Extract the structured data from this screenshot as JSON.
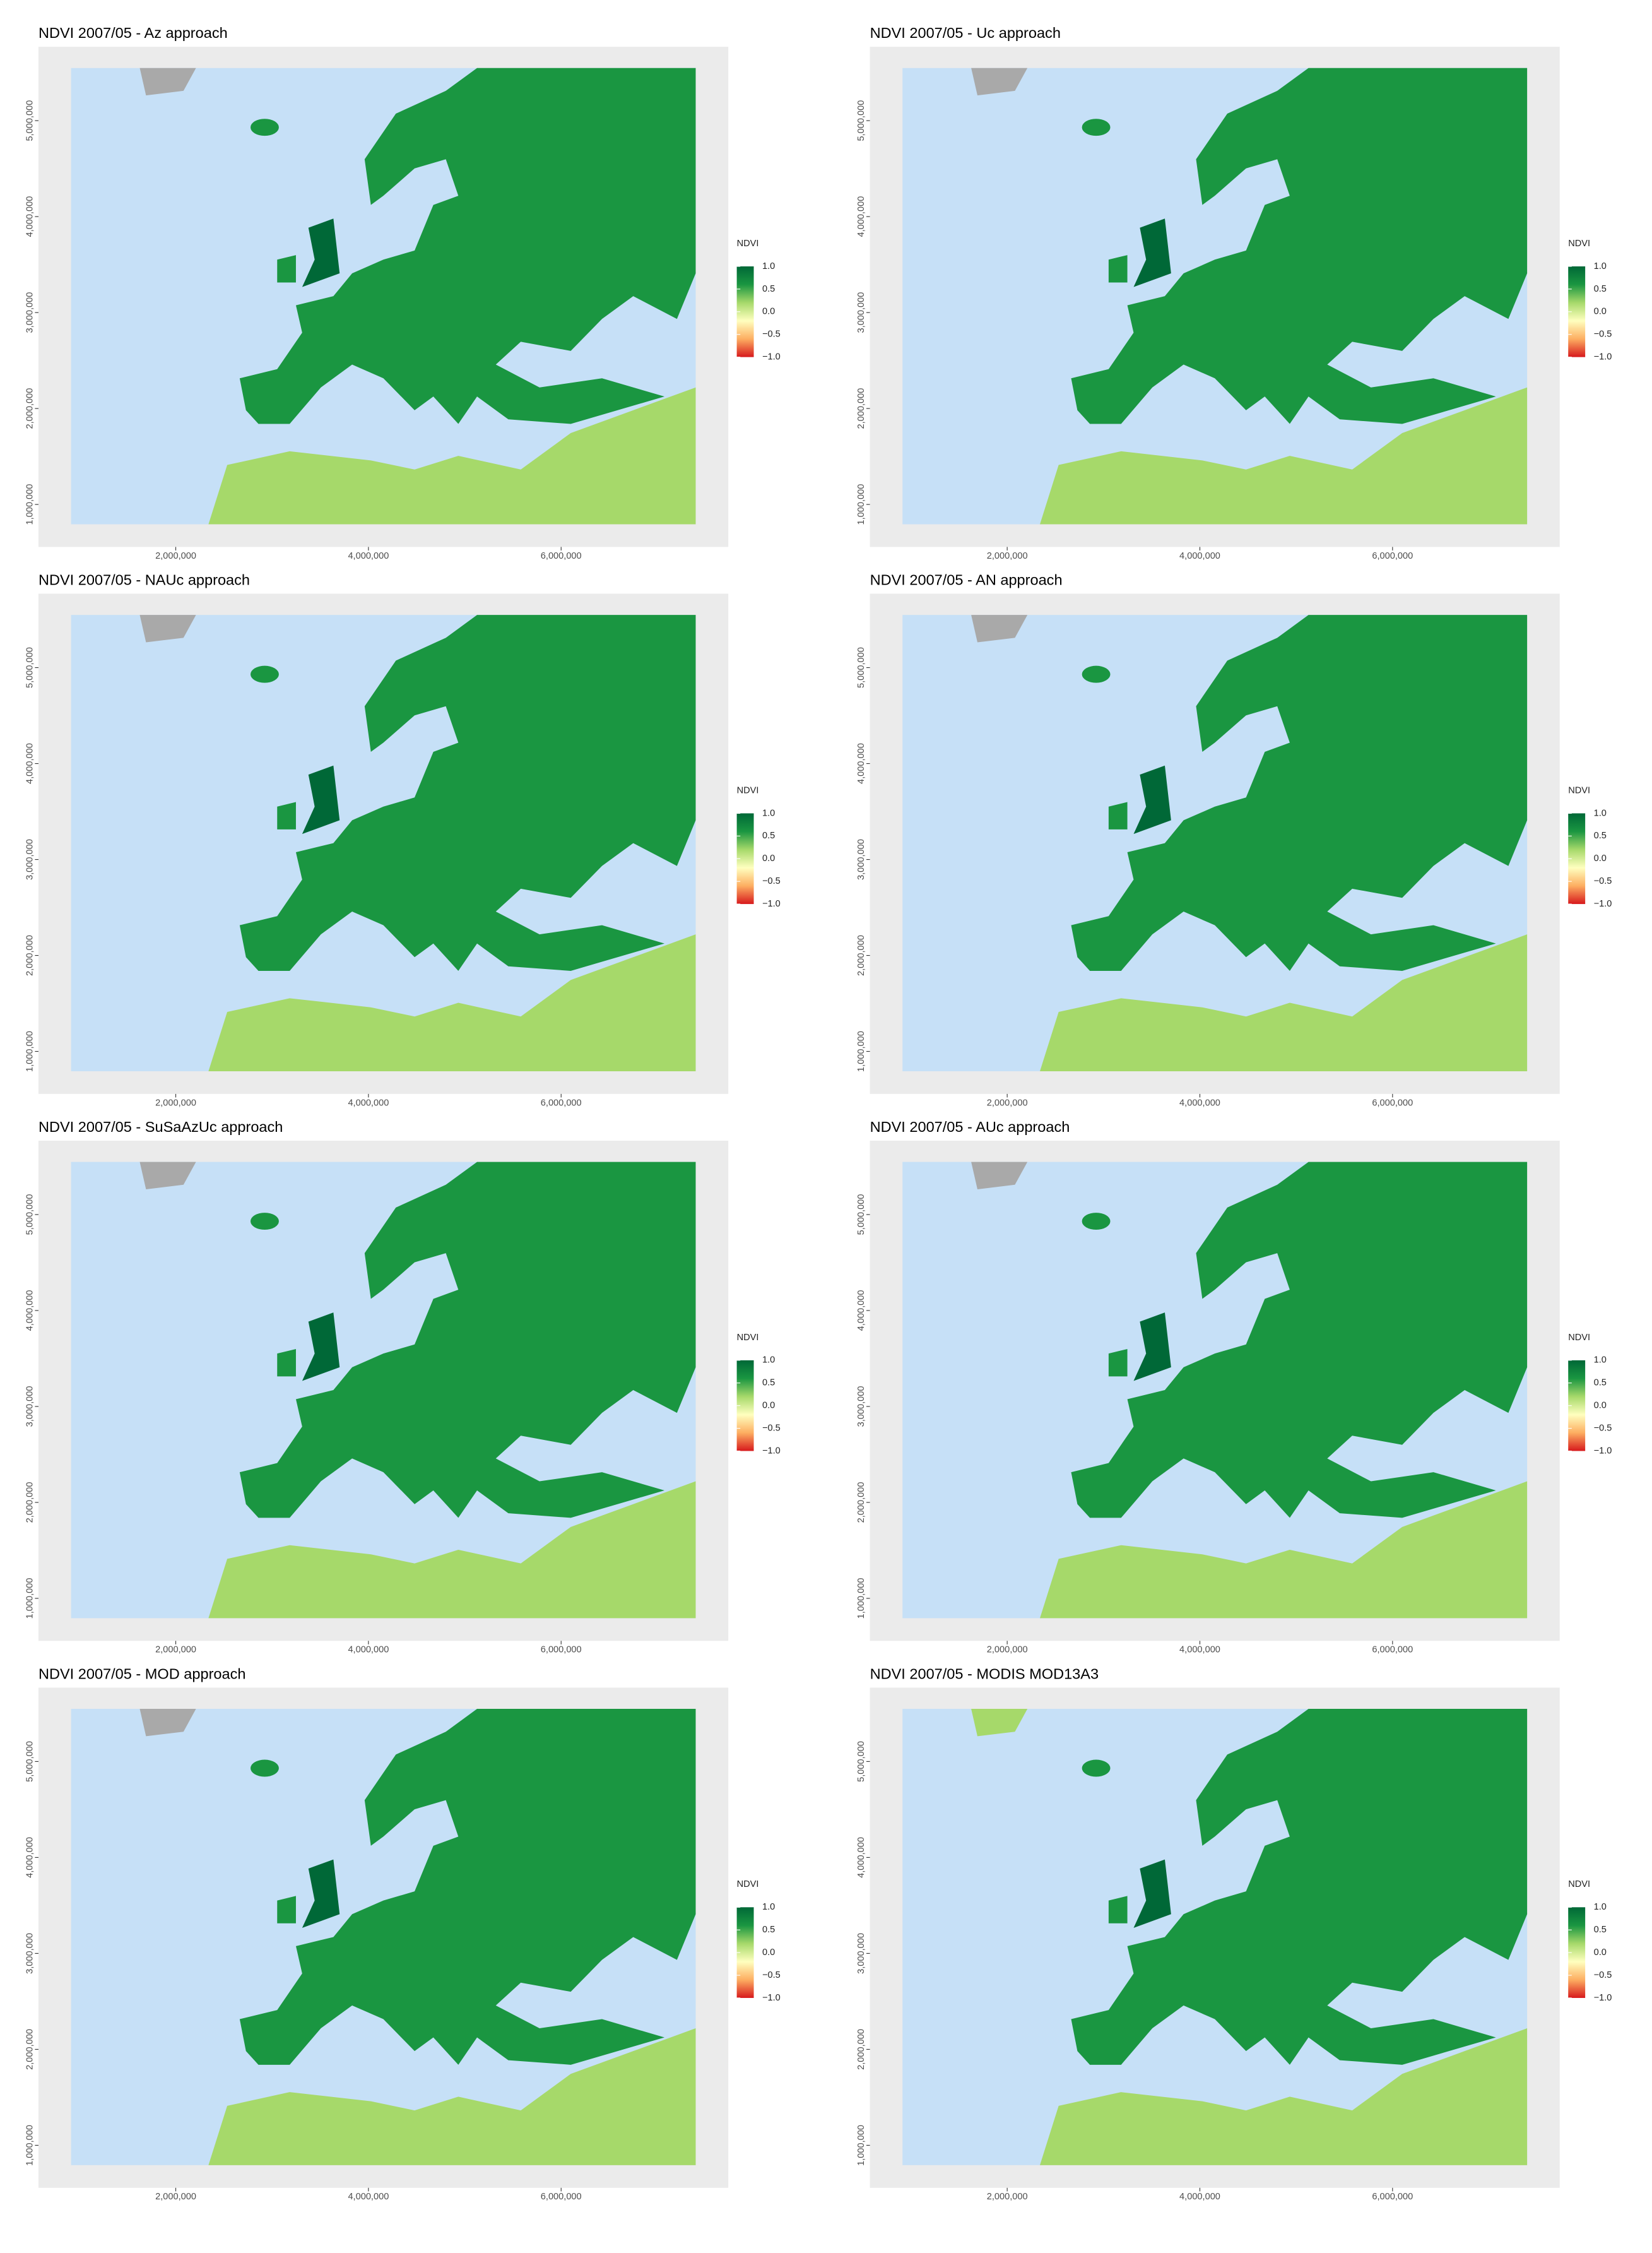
{
  "chart_data": [
    {
      "type": "raster-map",
      "title": "NDVI 2007/05 - Az approach",
      "legend_title": "NDVI",
      "colormap": [
        "#d7191c",
        "#fdae61",
        "#ffffbf",
        "#a6d96a",
        "#1a9641",
        "#006837"
      ],
      "clim": [
        -1,
        1
      ],
      "colorbar_ticks": [
        {
          "value": 1,
          "label": "1.0"
        },
        {
          "value": 0.5,
          "label": "0.5"
        },
        {
          "value": 0,
          "label": "0.0"
        },
        {
          "value": -0.5,
          "label": "−0.5"
        },
        {
          "value": -1,
          "label": "−1.0"
        }
      ],
      "xlim": [
        575000,
        7735000
      ],
      "ylim": [
        557000,
        5770000
      ],
      "xticks": [
        {
          "value": 2000000,
          "label": "2,000,000"
        },
        {
          "value": 4000000,
          "label": "4,000,000"
        },
        {
          "value": 6000000,
          "label": "6,000,000"
        }
      ],
      "yticks": [
        {
          "value": 1000000,
          "label": "1,000,000"
        },
        {
          "value": 2000000,
          "label": "2,000,000"
        },
        {
          "value": 3000000,
          "label": "3,000,000"
        },
        {
          "value": 4000000,
          "label": "4,000,000"
        },
        {
          "value": 5000000,
          "label": "5,000,000"
        }
      ]
    },
    {
      "type": "raster-map",
      "title": "NDVI 2007/05 - Uc approach",
      "legend_title": "NDVI",
      "colormap": [
        "#d7191c",
        "#fdae61",
        "#ffffbf",
        "#a6d96a",
        "#1a9641",
        "#006837"
      ],
      "clim": [
        -1,
        1
      ],
      "colorbar_ticks": [
        {
          "value": 1,
          "label": "1.0"
        },
        {
          "value": 0.5,
          "label": "0.5"
        },
        {
          "value": 0,
          "label": "0.0"
        },
        {
          "value": -0.5,
          "label": "−0.5"
        },
        {
          "value": -1,
          "label": "−1.0"
        }
      ],
      "xlim": [
        575000,
        7735000
      ],
      "ylim": [
        557000,
        5770000
      ],
      "xticks": [
        {
          "value": 2000000,
          "label": "2,000,000"
        },
        {
          "value": 4000000,
          "label": "4,000,000"
        },
        {
          "value": 6000000,
          "label": "6,000,000"
        }
      ],
      "yticks": [
        {
          "value": 1000000,
          "label": "1,000,000"
        },
        {
          "value": 2000000,
          "label": "2,000,000"
        },
        {
          "value": 3000000,
          "label": "3,000,000"
        },
        {
          "value": 4000000,
          "label": "4,000,000"
        },
        {
          "value": 5000000,
          "label": "5,000,000"
        }
      ]
    },
    {
      "type": "raster-map",
      "title": "NDVI 2007/05 - NAUc approach",
      "legend_title": "NDVI",
      "colormap": [
        "#d7191c",
        "#fdae61",
        "#ffffbf",
        "#a6d96a",
        "#1a9641",
        "#006837"
      ],
      "clim": [
        -1,
        1
      ],
      "colorbar_ticks": [
        {
          "value": 1,
          "label": "1.0"
        },
        {
          "value": 0.5,
          "label": "0.5"
        },
        {
          "value": 0,
          "label": "0.0"
        },
        {
          "value": -0.5,
          "label": "−0.5"
        },
        {
          "value": -1,
          "label": "−1.0"
        }
      ],
      "xlim": [
        575000,
        7735000
      ],
      "ylim": [
        557000,
        5770000
      ],
      "xticks": [
        {
          "value": 2000000,
          "label": "2,000,000"
        },
        {
          "value": 4000000,
          "label": "4,000,000"
        },
        {
          "value": 6000000,
          "label": "6,000,000"
        }
      ],
      "yticks": [
        {
          "value": 1000000,
          "label": "1,000,000"
        },
        {
          "value": 2000000,
          "label": "2,000,000"
        },
        {
          "value": 3000000,
          "label": "3,000,000"
        },
        {
          "value": 4000000,
          "label": "4,000,000"
        },
        {
          "value": 5000000,
          "label": "5,000,000"
        }
      ]
    },
    {
      "type": "raster-map",
      "title": "NDVI 2007/05 - AN approach",
      "legend_title": "NDVI",
      "colormap": [
        "#d7191c",
        "#fdae61",
        "#ffffbf",
        "#a6d96a",
        "#1a9641",
        "#006837"
      ],
      "clim": [
        -1,
        1
      ],
      "colorbar_ticks": [
        {
          "value": 1,
          "label": "1.0"
        },
        {
          "value": 0.5,
          "label": "0.5"
        },
        {
          "value": 0,
          "label": "0.0"
        },
        {
          "value": -0.5,
          "label": "−0.5"
        },
        {
          "value": -1,
          "label": "−1.0"
        }
      ],
      "xlim": [
        575000,
        7735000
      ],
      "ylim": [
        557000,
        5770000
      ],
      "xticks": [
        {
          "value": 2000000,
          "label": "2,000,000"
        },
        {
          "value": 4000000,
          "label": "4,000,000"
        },
        {
          "value": 6000000,
          "label": "6,000,000"
        }
      ],
      "yticks": [
        {
          "value": 1000000,
          "label": "1,000,000"
        },
        {
          "value": 2000000,
          "label": "2,000,000"
        },
        {
          "value": 3000000,
          "label": "3,000,000"
        },
        {
          "value": 4000000,
          "label": "4,000,000"
        },
        {
          "value": 5000000,
          "label": "5,000,000"
        }
      ]
    },
    {
      "type": "raster-map",
      "title": "NDVI 2007/05 - SuSaAzUc approach",
      "legend_title": "NDVI",
      "colormap": [
        "#d7191c",
        "#fdae61",
        "#ffffbf",
        "#a6d96a",
        "#1a9641",
        "#006837"
      ],
      "clim": [
        -1,
        1
      ],
      "colorbar_ticks": [
        {
          "value": 1,
          "label": "1.0"
        },
        {
          "value": 0.5,
          "label": "0.5"
        },
        {
          "value": 0,
          "label": "0.0"
        },
        {
          "value": -0.5,
          "label": "−0.5"
        },
        {
          "value": -1,
          "label": "−1.0"
        }
      ],
      "xlim": [
        575000,
        7735000
      ],
      "ylim": [
        557000,
        5770000
      ],
      "xticks": [
        {
          "value": 2000000,
          "label": "2,000,000"
        },
        {
          "value": 4000000,
          "label": "4,000,000"
        },
        {
          "value": 6000000,
          "label": "6,000,000"
        }
      ],
      "yticks": [
        {
          "value": 1000000,
          "label": "1,000,000"
        },
        {
          "value": 2000000,
          "label": "2,000,000"
        },
        {
          "value": 3000000,
          "label": "3,000,000"
        },
        {
          "value": 4000000,
          "label": "4,000,000"
        },
        {
          "value": 5000000,
          "label": "5,000,000"
        }
      ]
    },
    {
      "type": "raster-map",
      "title": "NDVI 2007/05 - AUc approach",
      "legend_title": "NDVI",
      "colormap": [
        "#d7191c",
        "#fdae61",
        "#ffffbf",
        "#a6d96a",
        "#1a9641",
        "#006837"
      ],
      "clim": [
        -1,
        1
      ],
      "colorbar_ticks": [
        {
          "value": 1,
          "label": "1.0"
        },
        {
          "value": 0.5,
          "label": "0.5"
        },
        {
          "value": 0,
          "label": "0.0"
        },
        {
          "value": -0.5,
          "label": "−0.5"
        },
        {
          "value": -1,
          "label": "−1.0"
        }
      ],
      "xlim": [
        575000,
        7735000
      ],
      "ylim": [
        557000,
        5770000
      ],
      "xticks": [
        {
          "value": 2000000,
          "label": "2,000,000"
        },
        {
          "value": 4000000,
          "label": "4,000,000"
        },
        {
          "value": 6000000,
          "label": "6,000,000"
        }
      ],
      "yticks": [
        {
          "value": 1000000,
          "label": "1,000,000"
        },
        {
          "value": 2000000,
          "label": "2,000,000"
        },
        {
          "value": 3000000,
          "label": "3,000,000"
        },
        {
          "value": 4000000,
          "label": "4,000,000"
        },
        {
          "value": 5000000,
          "label": "5,000,000"
        }
      ]
    },
    {
      "type": "raster-map",
      "title": "NDVI 2007/05 - MOD approach",
      "legend_title": "NDVI",
      "colormap": [
        "#d7191c",
        "#fdae61",
        "#ffffbf",
        "#a6d96a",
        "#1a9641",
        "#006837"
      ],
      "clim": [
        -1,
        1
      ],
      "colorbar_ticks": [
        {
          "value": 1,
          "label": "1.0"
        },
        {
          "value": 0.5,
          "label": "0.5"
        },
        {
          "value": 0,
          "label": "0.0"
        },
        {
          "value": -0.5,
          "label": "−0.5"
        },
        {
          "value": -1,
          "label": "−1.0"
        }
      ],
      "xlim": [
        575000,
        7735000
      ],
      "ylim": [
        557000,
        5770000
      ],
      "xticks": [
        {
          "value": 2000000,
          "label": "2,000,000"
        },
        {
          "value": 4000000,
          "label": "4,000,000"
        },
        {
          "value": 6000000,
          "label": "6,000,000"
        }
      ],
      "yticks": [
        {
          "value": 1000000,
          "label": "1,000,000"
        },
        {
          "value": 2000000,
          "label": "2,000,000"
        },
        {
          "value": 3000000,
          "label": "3,000,000"
        },
        {
          "value": 4000000,
          "label": "4,000,000"
        },
        {
          "value": 5000000,
          "label": "5,000,000"
        }
      ]
    },
    {
      "type": "raster-map",
      "title": "NDVI 2007/05 - MODIS MOD13A3",
      "legend_title": "NDVI",
      "colormap": [
        "#d7191c",
        "#fdae61",
        "#ffffbf",
        "#a6d96a",
        "#1a9641",
        "#006837"
      ],
      "clim": [
        -1,
        1
      ],
      "colorbar_ticks": [
        {
          "value": 1,
          "label": "1.0"
        },
        {
          "value": 0.5,
          "label": "0.5"
        },
        {
          "value": 0,
          "label": "0.0"
        },
        {
          "value": -0.5,
          "label": "−0.5"
        },
        {
          "value": -1,
          "label": "−1.0"
        }
      ],
      "xlim": [
        575000,
        7735000
      ],
      "ylim": [
        557000,
        5770000
      ],
      "xticks": [
        {
          "value": 2000000,
          "label": "2,000,000"
        },
        {
          "value": 4000000,
          "label": "4,000,000"
        },
        {
          "value": 6000000,
          "label": "6,000,000"
        }
      ],
      "yticks": [
        {
          "value": 1000000,
          "label": "1,000,000"
        },
        {
          "value": 2000000,
          "label": "2,000,000"
        },
        {
          "value": 3000000,
          "label": "3,000,000"
        },
        {
          "value": 4000000,
          "label": "4,000,000"
        },
        {
          "value": 5000000,
          "label": "5,000,000"
        }
      ]
    }
  ]
}
